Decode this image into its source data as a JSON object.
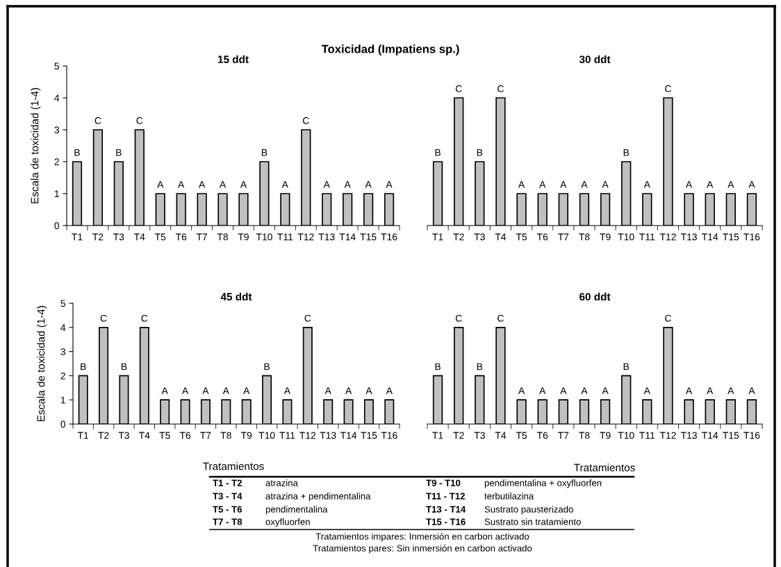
{
  "chart_data": [
    {
      "type": "bar",
      "title": "15 ddt",
      "ylabel": "Escala de toxicidad (1-4)",
      "annotations": [
        "Toxicidad (Impatiens sp.)"
      ],
      "categories": [
        "T1",
        "T2",
        "T3",
        "T4",
        "T5",
        "T6",
        "T7",
        "T8",
        "T9",
        "T10",
        "T11",
        "T12",
        "T13",
        "T14",
        "T15",
        "T16"
      ],
      "values": [
        2,
        3,
        2,
        3,
        1,
        1,
        1,
        1,
        1,
        2,
        1,
        3,
        1,
        1,
        1,
        1
      ],
      "value_labels": [
        "B",
        "C",
        "B",
        "C",
        "A",
        "A",
        "A",
        "A",
        "A",
        "B",
        "A",
        "C",
        "A",
        "A",
        "A",
        "A"
      ],
      "color": "#c0c0c0",
      "ylim": [
        0,
        5
      ],
      "yticks": [
        0,
        1,
        2,
        3,
        4,
        5
      ],
      "grid": false,
      "legend": false
    },
    {
      "type": "bar",
      "title": "30 ddt",
      "tick_labels": "x",
      "categories": [
        "T1",
        "T2",
        "T3",
        "T4",
        "T5",
        "T6",
        "T7",
        "T8",
        "T9",
        "T10",
        "T11",
        "T12",
        "T13",
        "T14",
        "T15",
        "T16"
      ],
      "values": [
        2,
        4,
        2,
        4,
        1,
        1,
        1,
        1,
        1,
        2,
        1,
        4,
        1,
        1,
        1,
        1
      ],
      "value_labels": [
        "B",
        "C",
        "B",
        "C",
        "A",
        "A",
        "A",
        "A",
        "A",
        "B",
        "A",
        "C",
        "A",
        "A",
        "A",
        "A"
      ],
      "color": "#c0c0c0",
      "ylim": [
        0,
        5
      ],
      "yticks": [
        0,
        1,
        2,
        3,
        4,
        5
      ],
      "grid": false,
      "legend": false
    },
    {
      "type": "bar",
      "title": "45 ddt",
      "ylabel": "Escala de toxicidad (1-4)",
      "xlabel": "Tratamientos",
      "categories": [
        "T1",
        "T2",
        "T3",
        "T4",
        "T5",
        "T6",
        "T7",
        "T8",
        "T9",
        "T10",
        "T11",
        "T12",
        "T13",
        "T14",
        "T15",
        "T16"
      ],
      "values": [
        2,
        4,
        2,
        4,
        1,
        1,
        1,
        1,
        1,
        2,
        1,
        4,
        1,
        1,
        1,
        1
      ],
      "value_labels": [
        "B",
        "C",
        "B",
        "C",
        "A",
        "A",
        "A",
        "A",
        "A",
        "B",
        "A",
        "C",
        "A",
        "A",
        "A",
        "A"
      ],
      "color": "#c0c0c0",
      "ylim": [
        0,
        5
      ],
      "yticks": [
        0,
        1,
        2,
        3,
        4,
        5
      ],
      "grid": false,
      "legend": false
    },
    {
      "type": "bar",
      "title": "60 ddt",
      "tick_labels": "x",
      "xlabel": "Tratamientos",
      "categories": [
        "T1",
        "T2",
        "T3",
        "T4",
        "T5",
        "T6",
        "T7",
        "T8",
        "T9",
        "T10",
        "T11",
        "T12",
        "T13",
        "T14",
        "T15",
        "T16"
      ],
      "values": [
        2,
        4,
        2,
        4,
        1,
        1,
        1,
        1,
        1,
        2,
        1,
        4,
        1,
        1,
        1,
        1
      ],
      "value_labels": [
        "B",
        "C",
        "B",
        "C",
        "A",
        "A",
        "A",
        "A",
        "A",
        "B",
        "A",
        "C",
        "A",
        "A",
        "A",
        "A"
      ],
      "color": "#c0c0c0",
      "ylim": [
        0,
        5
      ],
      "yticks": [
        0,
        1,
        2,
        3,
        4,
        5
      ],
      "grid": false,
      "legend": false,
      "annotations": [
        "T1 - T2",
        "atrazina",
        "T9 - T10",
        "pendimentalina + oxyfluorfen",
        "T3 - T4",
        "atrazina + pendimentalina",
        "T11 - T12",
        "terbutilazina",
        "T5 - T6",
        "pendimentalina",
        "T13 - T14",
        "Sustrato pausterizado",
        "T7 - T8",
        "oxyfluorfen",
        "T15 - T16",
        "Sustrato sin tratamiento",
        "Tratamientos impares: Inmersión en carbon activado",
        "Tratamientos pares: Sin inmersión en carbon activado"
      ]
    }
  ]
}
